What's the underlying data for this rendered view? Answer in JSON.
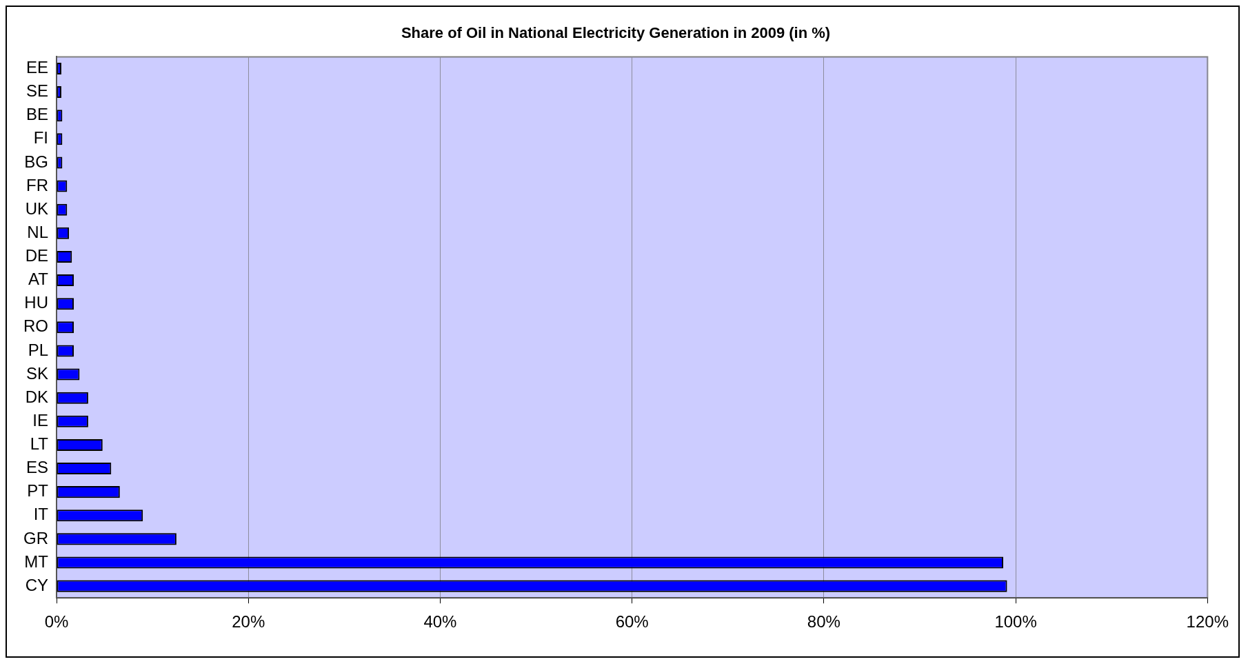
{
  "chart_data": {
    "type": "bar",
    "orientation": "horizontal",
    "title": "Share of Oil in National Electricity Generation in 2009 (in %)",
    "categories": [
      "EE",
      "SE",
      "BE",
      "FI",
      "BG",
      "FR",
      "UK",
      "NL",
      "DE",
      "AT",
      "HU",
      "RO",
      "PL",
      "SK",
      "DK",
      "IE",
      "LT",
      "ES",
      "PT",
      "IT",
      "GR",
      "MT",
      "CY"
    ],
    "values": [
      0.5,
      0.5,
      0.6,
      0.6,
      0.6,
      1.1,
      1.1,
      1.3,
      1.6,
      1.8,
      1.8,
      1.8,
      1.8,
      2.4,
      3.3,
      3.3,
      4.8,
      5.7,
      6.6,
      9.0,
      12.5,
      98.7,
      99.1
    ],
    "color": "#0000ff",
    "xlim": [
      0,
      120
    ],
    "xticks": [
      {
        "value": 0,
        "label": "0%"
      },
      {
        "value": 20,
        "label": "20%"
      },
      {
        "value": 40,
        "label": "40%"
      },
      {
        "value": 60,
        "label": "60%"
      },
      {
        "value": 80,
        "label": "80%"
      },
      {
        "value": 100,
        "label": "100%"
      },
      {
        "value": 120,
        "label": "120%"
      }
    ],
    "grid": "x",
    "legend": false
  }
}
